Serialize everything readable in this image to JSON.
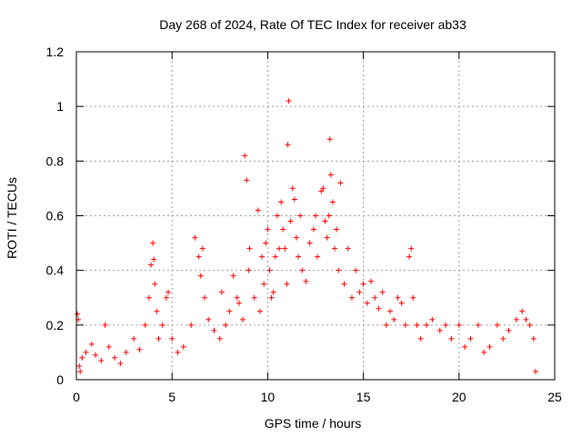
{
  "chart_data": {
    "type": "scatter",
    "title": "Day 268 of 2024, Rate Of TEC Index for receiver ab33",
    "xlabel": "GPS time / hours",
    "ylabel": "ROTI / TECUs",
    "xlim": [
      0,
      25
    ],
    "ylim": [
      0,
      1.2
    ],
    "xticks": [
      "0",
      "5",
      "10",
      "15",
      "20",
      "25"
    ],
    "yticks": [
      "0",
      "0.2",
      "0.4",
      "0.6",
      "0.8",
      "1",
      "1.2"
    ],
    "grid": true,
    "marker": "plus",
    "colors": {
      "series": "#ff0000",
      "grid": "#a0a0a0",
      "frame": "#000000"
    },
    "series": [
      {
        "name": "",
        "x": [
          0.05,
          0.1,
          0.15,
          0.2,
          0.3,
          0.5,
          0.8,
          1.0,
          1.3,
          1.5,
          1.7,
          2.0,
          2.3,
          2.6,
          3.0,
          3.3,
          3.6,
          3.8,
          3.9,
          4.0,
          4.05,
          4.1,
          4.2,
          4.3,
          4.5,
          4.7,
          4.8,
          5.0,
          5.3,
          5.6,
          6.0,
          6.2,
          6.4,
          6.5,
          6.6,
          6.7,
          6.9,
          7.2,
          7.5,
          7.6,
          7.8,
          8.0,
          8.2,
          8.4,
          8.5,
          8.7,
          8.8,
          8.9,
          9.0,
          9.05,
          9.3,
          9.5,
          9.6,
          9.7,
          9.8,
          9.9,
          10.0,
          10.1,
          10.2,
          10.3,
          10.4,
          10.5,
          10.6,
          10.7,
          10.8,
          10.9,
          11.0,
          11.05,
          11.1,
          11.2,
          11.3,
          11.4,
          11.5,
          11.6,
          11.7,
          11.8,
          12.0,
          12.2,
          12.4,
          12.5,
          12.6,
          12.8,
          12.9,
          13.0,
          13.1,
          13.2,
          13.25,
          13.3,
          13.4,
          13.5,
          13.6,
          13.7,
          13.8,
          14.0,
          14.2,
          14.4,
          14.6,
          14.8,
          15.0,
          15.2,
          15.4,
          15.6,
          15.8,
          16.0,
          16.2,
          16.4,
          16.6,
          16.8,
          17.0,
          17.2,
          17.4,
          17.5,
          17.6,
          17.8,
          18.0,
          18.3,
          18.6,
          19.0,
          19.3,
          19.6,
          20.0,
          20.3,
          20.6,
          21.0,
          21.3,
          21.6,
          22.0,
          22.3,
          22.6,
          23.0,
          23.3,
          23.5,
          23.7,
          23.9,
          24.0
        ],
        "y": [
          0.24,
          0.22,
          0.05,
          0.03,
          0.08,
          0.1,
          0.13,
          0.09,
          0.07,
          0.2,
          0.12,
          0.08,
          0.06,
          0.1,
          0.15,
          0.11,
          0.2,
          0.3,
          0.42,
          0.5,
          0.44,
          0.35,
          0.25,
          0.15,
          0.2,
          0.3,
          0.32,
          0.15,
          0.1,
          0.12,
          0.2,
          0.52,
          0.45,
          0.38,
          0.48,
          0.3,
          0.22,
          0.18,
          0.15,
          0.32,
          0.2,
          0.25,
          0.38,
          0.3,
          0.28,
          0.22,
          0.82,
          0.73,
          0.4,
          0.48,
          0.3,
          0.62,
          0.25,
          0.45,
          0.35,
          0.5,
          0.55,
          0.4,
          0.3,
          0.32,
          0.45,
          0.6,
          0.48,
          0.65,
          0.55,
          0.48,
          0.35,
          0.86,
          1.02,
          0.58,
          0.7,
          0.66,
          0.52,
          0.45,
          0.6,
          0.4,
          0.36,
          0.5,
          0.55,
          0.6,
          0.45,
          0.69,
          0.7,
          0.58,
          0.52,
          0.6,
          0.88,
          0.75,
          0.65,
          0.48,
          0.55,
          0.4,
          0.72,
          0.35,
          0.48,
          0.3,
          0.4,
          0.32,
          0.35,
          0.28,
          0.36,
          0.3,
          0.26,
          0.32,
          0.2,
          0.25,
          0.22,
          0.3,
          0.28,
          0.2,
          0.45,
          0.48,
          0.3,
          0.2,
          0.15,
          0.2,
          0.22,
          0.18,
          0.2,
          0.15,
          0.2,
          0.12,
          0.15,
          0.2,
          0.1,
          0.12,
          0.2,
          0.15,
          0.18,
          0.22,
          0.25,
          0.22,
          0.2,
          0.15,
          0.03
        ]
      }
    ]
  }
}
